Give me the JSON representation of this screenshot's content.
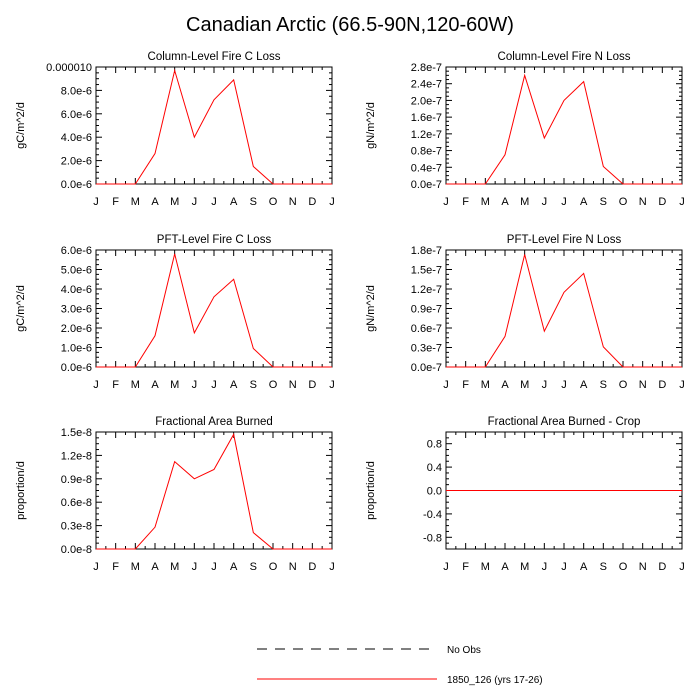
{
  "title": "Canadian Arctic (66.5-90N,120-60W)",
  "colors": {
    "model": "#ff0000",
    "obs": "#000000",
    "axis": "#000000"
  },
  "legend": [
    {
      "label": "No Obs",
      "style": "dashed",
      "color": "#000000"
    },
    {
      "label": "1850_126 (yrs 17-26)",
      "style": "solid",
      "color": "#ff0000"
    }
  ],
  "chart_data": [
    {
      "type": "line",
      "title": "Column-Level Fire C Loss",
      "ylabel": "gC/m^2/d",
      "categories": [
        "J",
        "F",
        "M",
        "A",
        "M",
        "J",
        "J",
        "A",
        "S",
        "O",
        "N",
        "D",
        "J"
      ],
      "ylim": [
        0,
        1e-05
      ],
      "yticks": [
        0,
        2e-06,
        4e-06,
        6e-06,
        8e-06,
        1e-05
      ],
      "ytick_labels": [
        "0.0e-6",
        "2.0e-6",
        "4.0e-6",
        "6.0e-6",
        "8.0e-6",
        "0.000010"
      ],
      "series": [
        {
          "name": "1850_126 (yrs 17-26)",
          "values": [
            0,
            0,
            0,
            2.6e-06,
            9.7e-06,
            4e-06,
            7.2e-06,
            8.9e-06,
            1.5e-06,
            0,
            0,
            0,
            0
          ]
        }
      ]
    },
    {
      "type": "line",
      "title": "Column-Level Fire N Loss",
      "ylabel": "gN/m^2/d",
      "categories": [
        "J",
        "F",
        "M",
        "A",
        "M",
        "J",
        "J",
        "A",
        "S",
        "O",
        "N",
        "D",
        "J"
      ],
      "ylim": [
        0,
        2.8e-07
      ],
      "yticks": [
        0,
        4e-08,
        8e-08,
        1.2e-07,
        1.6e-07,
        2e-07,
        2.4e-07,
        2.8e-07
      ],
      "ytick_labels": [
        "0.0e-7",
        "0.4e-7",
        "0.8e-7",
        "1.2e-7",
        "1.6e-7",
        "2.0e-7",
        "2.4e-7",
        "2.8e-7"
      ],
      "series": [
        {
          "name": "1850_126 (yrs 17-26)",
          "values": [
            0,
            0,
            0,
            7e-08,
            2.6e-07,
            1.1e-07,
            2e-07,
            2.45e-07,
            4.2e-08,
            0,
            0,
            0,
            0
          ]
        }
      ]
    },
    {
      "type": "line",
      "title": "PFT-Level Fire C Loss",
      "ylabel": "gC/m^2/d",
      "categories": [
        "J",
        "F",
        "M",
        "A",
        "M",
        "J",
        "J",
        "A",
        "S",
        "O",
        "N",
        "D",
        "J"
      ],
      "ylim": [
        0,
        6e-06
      ],
      "yticks": [
        0,
        1e-06,
        2e-06,
        3e-06,
        4e-06,
        5e-06,
        6e-06
      ],
      "ytick_labels": [
        "0.0e-6",
        "1.0e-6",
        "2.0e-6",
        "3.0e-6",
        "4.0e-6",
        "5.0e-6",
        "6.0e-6"
      ],
      "series": [
        {
          "name": "1850_126 (yrs 17-26)",
          "values": [
            0,
            0,
            0,
            1.6e-06,
            5.8e-06,
            1.75e-06,
            3.6e-06,
            4.5e-06,
            9.5e-07,
            0,
            0,
            0,
            0
          ]
        }
      ]
    },
    {
      "type": "line",
      "title": "PFT-Level Fire N Loss",
      "ylabel": "gN/m^2/d",
      "categories": [
        "J",
        "F",
        "M",
        "A",
        "M",
        "J",
        "J",
        "A",
        "S",
        "O",
        "N",
        "D",
        "J"
      ],
      "ylim": [
        0,
        1.8e-07
      ],
      "yticks": [
        0,
        3e-08,
        6e-08,
        9e-08,
        1.2e-07,
        1.5e-07,
        1.8e-07
      ],
      "ytick_labels": [
        "0.0e-7",
        "0.3e-7",
        "0.6e-7",
        "0.9e-7",
        "1.2e-7",
        "1.5e-7",
        "1.8e-7"
      ],
      "series": [
        {
          "name": "1850_126 (yrs 17-26)",
          "values": [
            0,
            0,
            0,
            4.7e-08,
            1.73e-07,
            5.5e-08,
            1.15e-07,
            1.44e-07,
            3.1e-08,
            0,
            0,
            0,
            0
          ]
        }
      ]
    },
    {
      "type": "line",
      "title": "Fractional Area Burned",
      "ylabel": "proportion/d",
      "categories": [
        "J",
        "F",
        "M",
        "A",
        "M",
        "J",
        "J",
        "A",
        "S",
        "O",
        "N",
        "D",
        "J"
      ],
      "ylim": [
        0,
        1.5e-08
      ],
      "yticks": [
        0,
        3e-09,
        6e-09,
        9e-09,
        1.2e-08,
        1.5e-08
      ],
      "ytick_labels": [
        "0.0e-8",
        "0.3e-8",
        "0.6e-8",
        "0.9e-8",
        "1.2e-8",
        "1.5e-8"
      ],
      "series": [
        {
          "name": "1850_126 (yrs 17-26)",
          "values": [
            0,
            0,
            0,
            2.8e-09,
            1.12e-08,
            9e-09,
            1.02e-08,
            1.47e-08,
            2.1e-09,
            0,
            0,
            0,
            0
          ]
        }
      ]
    },
    {
      "type": "line",
      "title": "Fractional Area Burned - Crop",
      "ylabel": "proportion/d",
      "categories": [
        "J",
        "F",
        "M",
        "A",
        "M",
        "J",
        "J",
        "A",
        "S",
        "O",
        "N",
        "D",
        "J"
      ],
      "ylim": [
        -1.0,
        1.0
      ],
      "yticks": [
        -0.8,
        -0.4,
        0.0,
        0.4,
        0.8
      ],
      "ytick_labels": [
        "-0.8",
        "-0.4",
        "0.0",
        "0.4",
        "0.8"
      ],
      "series": [
        {
          "name": "1850_126 (yrs 17-26)",
          "values": [
            0,
            0,
            0,
            0,
            0,
            0,
            0,
            0,
            0,
            0,
            0,
            0,
            0
          ]
        }
      ]
    }
  ]
}
